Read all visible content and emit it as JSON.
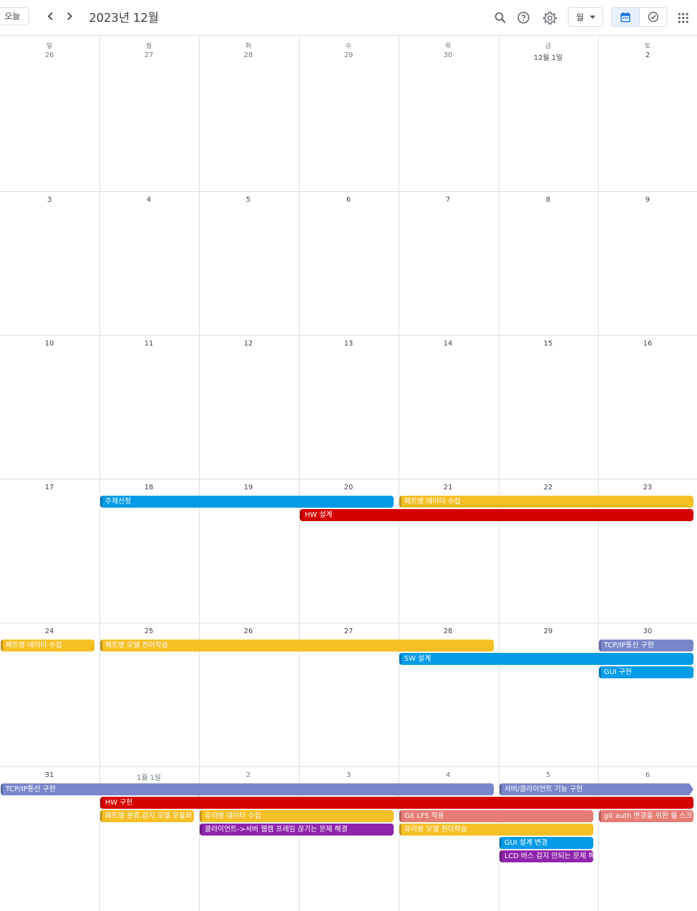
{
  "header": {
    "today_label": "오늘",
    "title": "2023년 12월",
    "view_label": "월",
    "icons": [
      "chevron-left-icon",
      "chevron-right-icon",
      "search-icon",
      "help-icon",
      "settings-icon",
      "dropdown-arrow-icon",
      "calendar-icon",
      "tasks-icon",
      "apps-icon"
    ]
  },
  "colors": {
    "blue": "#039be5",
    "yellow": "#f6bf26",
    "red": "#d50000",
    "lavender": "#7986cb",
    "flamingo": "#e67c73",
    "purple": "#8e24aa",
    "active_toggle_bg": "#e8f0fe",
    "accent": "#1a73e8"
  },
  "weekdays": [
    "일",
    "월",
    "화",
    "수",
    "목",
    "금",
    "토"
  ],
  "weeks": [
    {
      "days": [
        "26",
        "27",
        "28",
        "29",
        "30",
        "12월 1일",
        "2"
      ]
    },
    {
      "days": [
        "3",
        "4",
        "5",
        "6",
        "7",
        "8",
        "9"
      ]
    },
    {
      "days": [
        "10",
        "11",
        "12",
        "13",
        "14",
        "15",
        "16"
      ]
    },
    {
      "days": [
        "17",
        "18",
        "19",
        "20",
        "21",
        "22",
        "23"
      ]
    },
    {
      "days": [
        "24",
        "25",
        "26",
        "27",
        "28",
        "29",
        "30"
      ]
    },
    {
      "days": [
        "31",
        "1월 1일",
        "2",
        "3",
        "4",
        "5",
        "6"
      ]
    }
  ],
  "events": [
    {
      "title": "주제선정",
      "week": 3,
      "start": 1,
      "end": 3,
      "lane": 0,
      "color": "#039be5"
    },
    {
      "title": "페트병 데이터 수집",
      "week": 3,
      "start": 4,
      "end": 6,
      "lane": 0,
      "color": "#f6bf26"
    },
    {
      "title": "HW 설계",
      "week": 3,
      "start": 3,
      "end": 6,
      "lane": 1,
      "color": "#d50000"
    },
    {
      "title": "페트병 데이터 수집",
      "week": 4,
      "start": 0,
      "end": 0,
      "lane": 0,
      "color": "#f6bf26"
    },
    {
      "title": "페트병 모델 전이학습",
      "week": 4,
      "start": 1,
      "end": 4,
      "lane": 0,
      "color": "#f6bf26"
    },
    {
      "title": "TCP/IP통신 구현",
      "week": 4,
      "start": 6,
      "end": 6,
      "lane": 0,
      "color": "#7986cb"
    },
    {
      "title": "SW 설계",
      "week": 4,
      "start": 4,
      "end": 6,
      "lane": 1,
      "color": "#039be5"
    },
    {
      "title": "GUI 구현",
      "week": 4,
      "start": 6,
      "end": 6,
      "lane": 2,
      "color": "#039be5"
    },
    {
      "title": "TCP/IP통신 구현",
      "week": 5,
      "start": 0,
      "end": 4,
      "lane": 0,
      "color": "#7986cb"
    },
    {
      "title": "서버/클라이언트 기능 구현",
      "week": 5,
      "start": 5,
      "end": 6,
      "lane": 0,
      "color": "#7986cb",
      "continues": true
    },
    {
      "title": "HW 구현",
      "week": 5,
      "start": 1,
      "end": 6,
      "lane": 1,
      "color": "#d50000"
    },
    {
      "title": "페트병 분류,감지 모델 모듈화",
      "week": 5,
      "start": 1,
      "end": 1,
      "lane": 2,
      "color": "#f6bf26"
    },
    {
      "title": "유리병 데이터 수집",
      "week": 5,
      "start": 2,
      "end": 3,
      "lane": 2,
      "color": "#f6bf26"
    },
    {
      "title": "Git LFS 적용",
      "week": 5,
      "start": 4,
      "end": 5,
      "lane": 2,
      "color": "#e67c73"
    },
    {
      "title": "git auth 변경을 위한 쉘 스크",
      "week": 5,
      "start": 6,
      "end": 6,
      "lane": 2,
      "color": "#e67c73"
    },
    {
      "title": "클라이언트->서버 웹캠 프레임 끊기는 문제 해결",
      "week": 5,
      "start": 2,
      "end": 3,
      "lane": 3,
      "color": "#8e24aa"
    },
    {
      "title": "유리병 모델 전이학습",
      "week": 5,
      "start": 4,
      "end": 5,
      "lane": 3,
      "color": "#f6bf26"
    },
    {
      "title": "GUI 설계 변경",
      "week": 5,
      "start": 5,
      "end": 5,
      "lane": 4,
      "color": "#039be5"
    },
    {
      "title": "LCD 버스 감지 안되는 문제 해",
      "week": 5,
      "start": 5,
      "end": 5,
      "lane": 5,
      "color": "#8e24aa"
    }
  ]
}
